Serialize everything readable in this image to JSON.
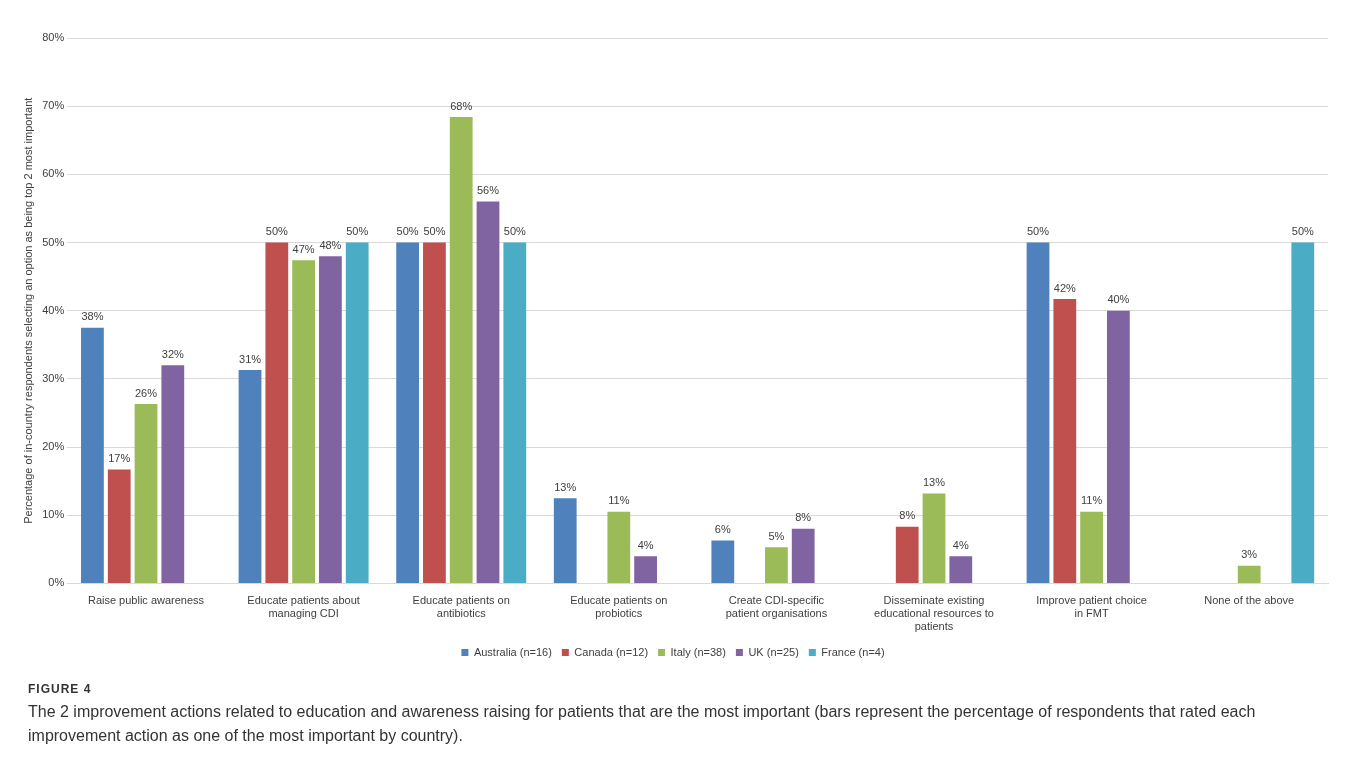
{
  "chart_data": {
    "type": "bar",
    "ylabel": "Percentage of in-country respondents selecting an option as being top 2 most important",
    "categories": [
      "Raise public awareness",
      "Educate patients about managing CDI",
      "Educate patients on antibiotics",
      "Educate patients on probiotics",
      "Create CDI-specific patient organisations",
      "Disseminate existing educational resources to patients",
      "Improve patient choice in FMT",
      "None of the above"
    ],
    "series": [
      {
        "name": "Australia (n=16)",
        "color": "#4f81bd",
        "values": [
          37.5,
          31.3,
          50,
          12.5,
          6.3,
          null,
          50,
          null
        ],
        "value_labels": [
          "38%",
          "31%",
          "50%",
          "13%",
          "6%",
          null,
          "50%",
          null
        ]
      },
      {
        "name": "Canada (n=12)",
        "color": "#c0504d",
        "values": [
          16.7,
          50,
          50,
          null,
          null,
          8.3,
          41.7,
          null
        ],
        "value_labels": [
          "17%",
          "50%",
          "50%",
          null,
          null,
          "8%",
          "42%",
          null
        ]
      },
      {
        "name": "Italy (n=38)",
        "color": "#9bbb59",
        "values": [
          26.3,
          47.4,
          68.4,
          10.5,
          5.3,
          13.2,
          10.5,
          2.6
        ],
        "value_labels": [
          "26%",
          "47%",
          "68%",
          "11%",
          "5%",
          "13%",
          "11%",
          "3%"
        ]
      },
      {
        "name": "UK (n=25)",
        "color": "#8064a2",
        "values": [
          32,
          48,
          56,
          4,
          8,
          4,
          40,
          null
        ],
        "value_labels": [
          "32%",
          "48%",
          "56%",
          "4%",
          "8%",
          "4%",
          "40%",
          null
        ]
      },
      {
        "name": "France (n=4)",
        "color": "#4bacc6",
        "values": [
          null,
          50,
          50,
          null,
          null,
          null,
          null,
          50
        ],
        "value_labels": [
          null,
          "50%",
          "50%",
          null,
          null,
          null,
          null,
          "50%"
        ]
      }
    ],
    "ylim": [
      0,
      80
    ],
    "yticks": [
      {
        "value": 0,
        "label": "0%"
      },
      {
        "value": 10,
        "label": "10%"
      },
      {
        "value": 20,
        "label": "20%"
      },
      {
        "value": 30,
        "label": "30%"
      },
      {
        "value": 40,
        "label": "40%"
      },
      {
        "value": 50,
        "label": "50%"
      },
      {
        "value": 60,
        "label": "60%"
      },
      {
        "value": 70,
        "label": "70%"
      },
      {
        "value": 80,
        "label": "80%"
      }
    ],
    "grid": "y",
    "legend": "bottom",
    "annotations": [
      "FIGURE 4",
      "The 2 improvement actions related to education and awareness raising for patients that are the most important (bars represent the percentage of respondents that rated each improvement action as one of the most important by country)."
    ]
  }
}
